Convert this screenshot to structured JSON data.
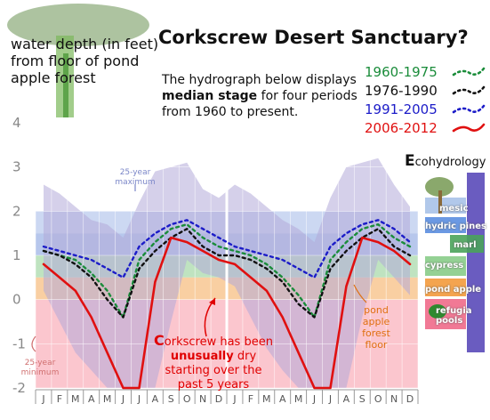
{
  "header": {
    "title": "Corkscrew Desert Sanctuary?",
    "axis_note": "water depth (in feet) from floor of pond apple forest",
    "description_line1": "The hydrograph below displays",
    "description_bold": "median stage",
    "description_line2": "for four periods from 1960 to present."
  },
  "legend": [
    {
      "label": "1960-1975",
      "color": "#1a8c3a",
      "dash": "3,4"
    },
    {
      "label": "1976-1990",
      "color": "#111111",
      "dash": "3,4"
    },
    {
      "label": "1991-2005",
      "color": "#1c1cc8",
      "dash": "3,4"
    },
    {
      "label": "2006-2012",
      "color": "#e01010",
      "dash": ""
    }
  ],
  "annotations": {
    "max_label": "25-year maximum",
    "min_label": "25-year minimum",
    "floor_label": "pond apple forest floor",
    "dry_first": "C",
    "dry_rest": "orkscrew has been",
    "dry_bold": "unusually",
    "dry_tail": "dry starting over the past 5 years"
  },
  "ecohydrology": {
    "title_initial": "E",
    "title_rest": "cohydrology",
    "zones": [
      {
        "label": "mesic",
        "color": "#a9c2e8"
      },
      {
        "label": "hydric pines",
        "color": "#5b8ee0"
      },
      {
        "label": "marl",
        "color": "#4aa35a"
      },
      {
        "label": "cypress",
        "color": "#88cc88"
      },
      {
        "label": "pond apple",
        "color": "#f39a3c"
      },
      {
        "label": "refugia pools",
        "color": "#f06a8a"
      }
    ]
  },
  "colors": {
    "band_blue": "#b7c7ec",
    "band_green": "#bfe3c0",
    "band_orange": "#f9cfa2",
    "band_pink": "#fbc6ce",
    "envelope": "#b3a9d8"
  },
  "chart_data": {
    "type": "line",
    "ylim": [
      -2,
      4
    ],
    "yticks": [
      -2,
      -1,
      0,
      1,
      2,
      3,
      4
    ],
    "months": [
      "J",
      "F",
      "M",
      "A",
      "M",
      "J",
      "J",
      "A",
      "S",
      "O",
      "N",
      "D",
      "J",
      "F",
      "M",
      "A",
      "M",
      "J",
      "J",
      "A",
      "S",
      "O",
      "N",
      "D"
    ],
    "x": [
      0,
      1,
      2,
      3,
      4,
      5,
      6,
      7,
      8,
      9,
      10,
      11,
      12,
      13,
      14,
      15,
      16,
      17,
      18,
      19,
      20,
      21,
      22,
      23
    ],
    "max_envelope": [
      2.6,
      2.4,
      2.1,
      1.8,
      1.7,
      1.4,
      2.2,
      2.9,
      3.0,
      3.1,
      2.5,
      2.3,
      2.6,
      2.4,
      2.1,
      1.8,
      1.6,
      1.3,
      2.3,
      3.0,
      3.1,
      3.2,
      2.6,
      2.1
    ],
    "min_envelope": [
      0.2,
      -0.5,
      -1.2,
      -1.6,
      -2.0,
      -2.0,
      -2.0,
      -2.0,
      -0.5,
      0.9,
      0.6,
      0.5,
      0.3,
      -0.4,
      -1.1,
      -1.6,
      -2.0,
      -2.0,
      -2.0,
      -2.0,
      -0.4,
      0.9,
      0.5,
      0.1
    ],
    "series": [
      {
        "name": "1960-1975",
        "values": [
          1.1,
          1.0,
          0.9,
          0.6,
          0.2,
          -0.4,
          0.9,
          1.3,
          1.6,
          1.7,
          1.4,
          1.2,
          1.1,
          1.0,
          0.8,
          0.5,
          0.1,
          -0.4,
          0.9,
          1.3,
          1.6,
          1.7,
          1.4,
          1.2
        ]
      },
      {
        "name": "1976-1990",
        "values": [
          1.1,
          1.0,
          0.8,
          0.5,
          0.0,
          -0.4,
          0.7,
          1.1,
          1.4,
          1.6,
          1.2,
          1.0,
          1.0,
          0.9,
          0.7,
          0.4,
          -0.1,
          -0.4,
          0.7,
          1.1,
          1.4,
          1.6,
          1.2,
          1.0
        ]
      },
      {
        "name": "1991-2005",
        "values": [
          1.2,
          1.1,
          1.0,
          0.9,
          0.7,
          0.5,
          1.2,
          1.5,
          1.7,
          1.8,
          1.6,
          1.4,
          1.2,
          1.1,
          1.0,
          0.9,
          0.7,
          0.5,
          1.2,
          1.5,
          1.7,
          1.8,
          1.6,
          1.3
        ]
      },
      {
        "name": "2006-2012",
        "values": [
          0.8,
          0.5,
          0.2,
          -0.4,
          -1.2,
          -2.0,
          -2.0,
          0.4,
          1.4,
          1.3,
          1.1,
          0.9,
          0.8,
          0.5,
          0.2,
          -0.4,
          -1.2,
          -2.0,
          -2.0,
          0.3,
          1.4,
          1.3,
          1.1,
          0.8
        ]
      }
    ],
    "bands": [
      {
        "name": "mesic",
        "from": 1.5,
        "to": 2.0
      },
      {
        "name": "hydric pines",
        "from": 1.0,
        "to": 1.5
      },
      {
        "name": "cypress",
        "from": 0.5,
        "to": 1.0
      },
      {
        "name": "pond apple",
        "from": 0.0,
        "to": 0.5
      },
      {
        "name": "refugia",
        "from": -2.0,
        "to": 0.0
      }
    ]
  }
}
